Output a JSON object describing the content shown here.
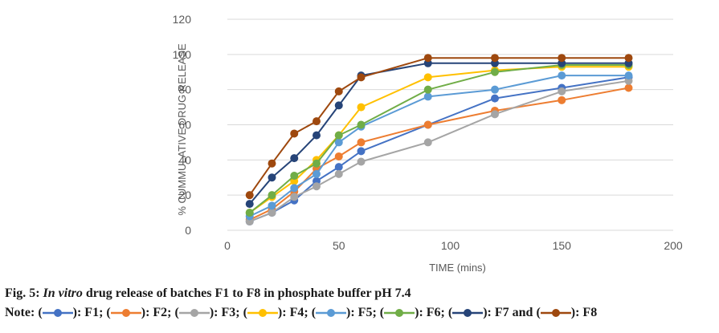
{
  "chart_data": {
    "type": "line",
    "title": "",
    "xlabel": "TIME (mins)",
    "ylabel": "% CUMMULATIVE DRUG RELEASE",
    "xlim": [
      0,
      200
    ],
    "ylim": [
      0,
      120
    ],
    "xticks": [
      0,
      50,
      100,
      150,
      200
    ],
    "yticks": [
      0,
      20,
      40,
      60,
      80,
      100,
      120
    ],
    "grid": "horizontal",
    "legend": "none",
    "x": [
      10,
      20,
      30,
      40,
      50,
      60,
      90,
      120,
      150,
      180
    ],
    "series": [
      {
        "name": "F1",
        "color": "#4472C4",
        "values": [
          5,
          10,
          17,
          28,
          36,
          45,
          60,
          75,
          81,
          87
        ]
      },
      {
        "name": "F2",
        "color": "#ED7D31",
        "values": [
          6,
          12,
          22,
          35,
          42,
          50,
          60,
          68,
          74,
          81
        ]
      },
      {
        "name": "F3",
        "color": "#A5A5A5",
        "values": [
          5,
          10,
          19,
          25,
          32,
          39,
          50,
          66,
          79,
          85
        ]
      },
      {
        "name": "F4",
        "color": "#FFC000",
        "values": [
          10,
          19,
          28,
          40,
          54,
          70,
          87,
          91,
          93,
          93
        ]
      },
      {
        "name": "F5",
        "color": "#5B9BD5",
        "values": [
          8,
          14,
          24,
          32,
          50,
          59,
          76,
          80,
          88,
          88
        ]
      },
      {
        "name": "F6",
        "color": "#70AD47",
        "values": [
          10,
          20,
          31,
          38,
          54,
          60,
          80,
          90,
          94,
          94
        ]
      },
      {
        "name": "F7",
        "color": "#264478",
        "values": [
          15,
          30,
          41,
          54,
          71,
          88,
          95,
          95,
          95,
          95
        ]
      },
      {
        "name": "F8",
        "color": "#9E480E",
        "values": [
          20,
          38,
          55,
          62,
          79,
          87,
          98,
          98,
          98,
          98
        ]
      }
    ]
  },
  "caption": {
    "fig_label": "Fig. 5:",
    "title_italic": "In vitro",
    "title_rest": "drug release of batches F1 to F8 in phosphate buffer pH 7.4",
    "note_label": "Note:",
    "legend_items": [
      {
        "label": ": F1;",
        "color": "#4472C4"
      },
      {
        "label": ": F2;",
        "color": "#ED7D31"
      },
      {
        "label": ": F3;",
        "color": "#A5A5A5"
      },
      {
        "label": ": F4;",
        "color": "#FFC000"
      },
      {
        "label": ": F5;",
        "color": "#5B9BD5"
      },
      {
        "label": ": F6;",
        "color": "#70AD47"
      },
      {
        "label": ": F7 and",
        "color": "#264478"
      },
      {
        "label": ": F8",
        "color": "#9E480E"
      }
    ]
  }
}
